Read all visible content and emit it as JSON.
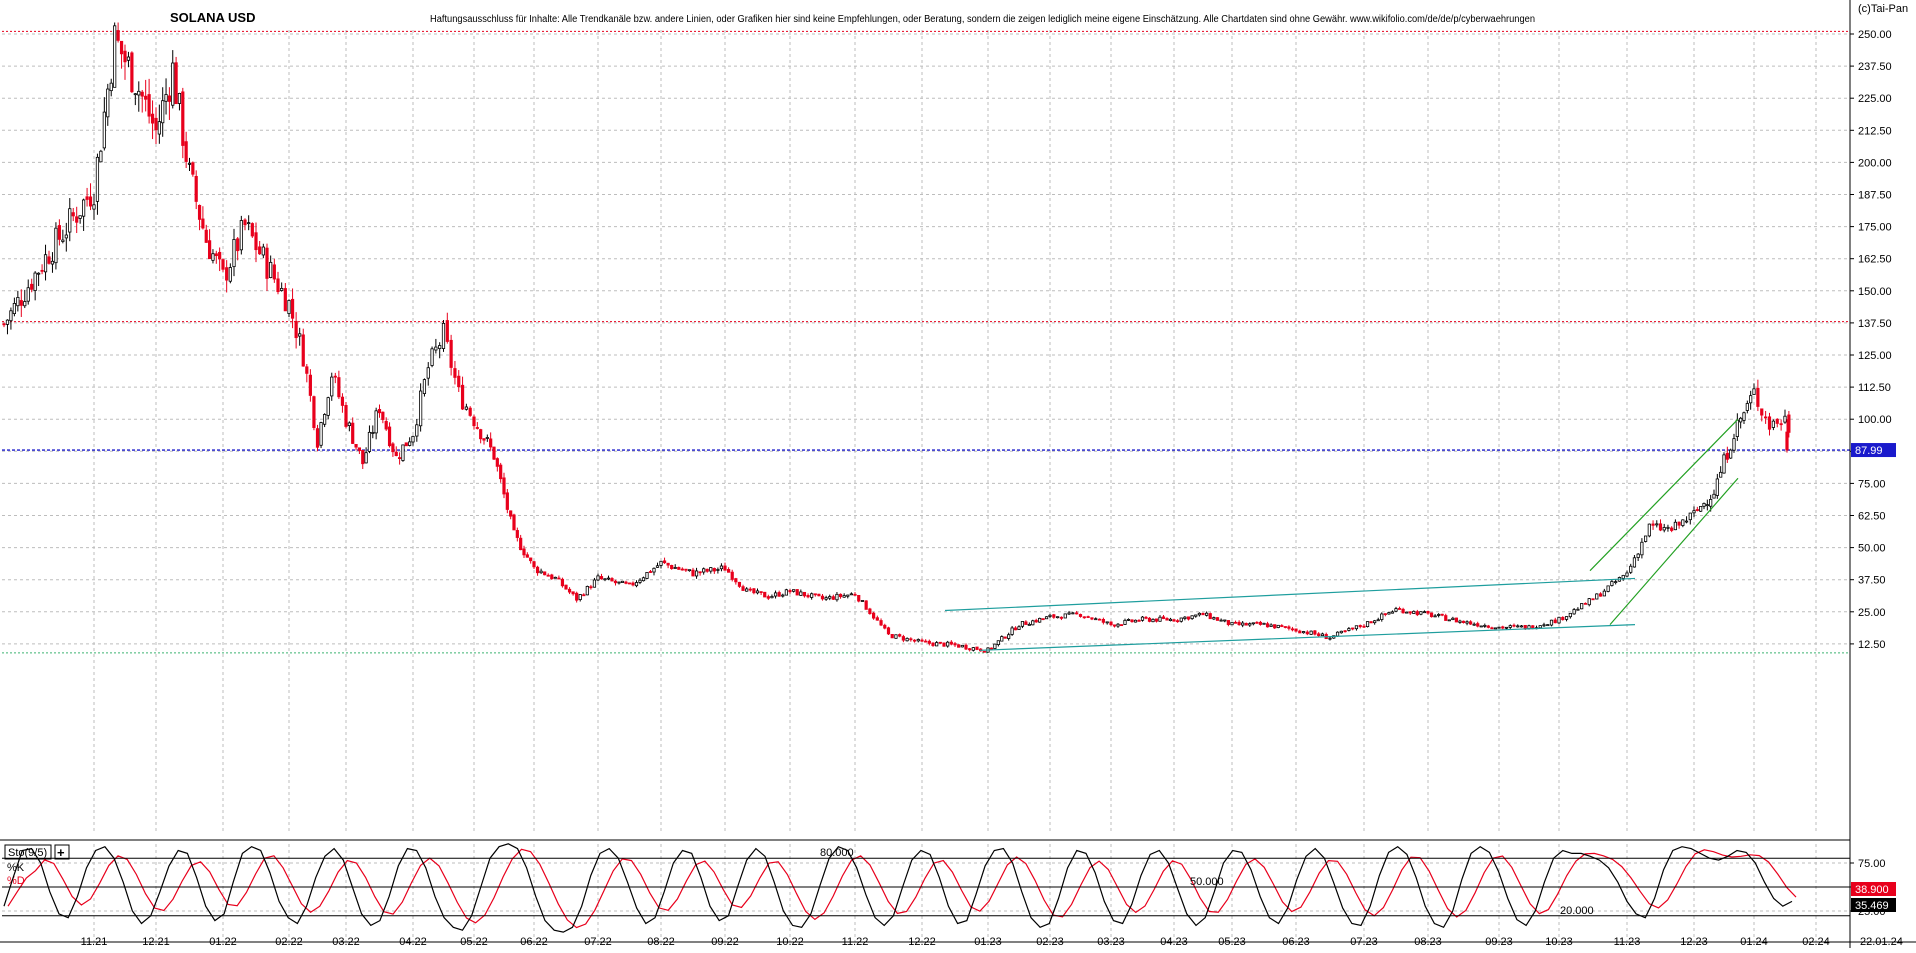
{
  "header": {
    "title": "SOLANA USD",
    "disclaimer": "Haftungsausschluss für Inhalte: Alle Trendkanäle bzw. andere Linien, oder Grafiken hier sind keine Empfehlungen, oder Beratung, sondern die zeigen lediglich meine eigene Einschätzung. Alle Chartdaten sind ohne Gewähr.  www.wikifolio.com/de/de/p/cyberwaehrungen",
    "copyright": "(c)Tai-Pan"
  },
  "colors": {
    "up_candle": "#000000",
    "down_candle": "#e8001c",
    "grid": "#bdbdbd",
    "last_price_line": "#1a1acc",
    "channel_teal": "#1f9e9e",
    "channel_green": "#22a022",
    "stoch_k": "#000000",
    "stoch_d": "#e8001c",
    "resistance_red": "#e8001c",
    "support_green": "#3cb371"
  },
  "chart_data": [
    {
      "type": "candlestick",
      "title": "SOLANA USD",
      "xlabel": "",
      "ylabel": "",
      "ylim": [
        2,
        257
      ],
      "y_ticks": [
        "250.00",
        "237.50",
        "225.00",
        "212.50",
        "200.00",
        "187.50",
        "175.00",
        "162.50",
        "150.00",
        "137.50",
        "125.00",
        "112.50",
        "100.00",
        "87.50",
        "75.00",
        "62.50",
        "50.00",
        "37.50",
        "25.00",
        "12.50"
      ],
      "y_tick_values": [
        250,
        237.5,
        225,
        212.5,
        200,
        187.5,
        175,
        162.5,
        150,
        137.5,
        125,
        112.5,
        100,
        87.5,
        75,
        62.5,
        50,
        37.5,
        25,
        12.5
      ],
      "x_ticks": [
        "11.21",
        "12.21",
        "01.22",
        "02.22",
        "03.22",
        "04.22",
        "05.22",
        "06.22",
        "07.22",
        "08.22",
        "09.22",
        "10.22",
        "11.22",
        "12.22",
        "01.23",
        "02.23",
        "03.23",
        "04.23",
        "05.23",
        "06.23",
        "07.23",
        "08.23",
        "09.23",
        "10.23",
        "11.23",
        "12.23",
        "01.24",
        "02.24"
      ],
      "last_date": "22.01.24",
      "last_price": 87.99,
      "last_price_label": "87.99",
      "horizontal_lines": [
        {
          "value": 251,
          "style": "dashed",
          "color": "red"
        },
        {
          "value": 138,
          "style": "dashed",
          "color": "red"
        },
        {
          "value": 87.99,
          "style": "dashed",
          "color": "blue"
        },
        {
          "value": 9,
          "style": "dashed",
          "color": "green"
        }
      ],
      "trendlines": [
        {
          "color": "teal",
          "from": [
            "12.22",
            25.5
          ],
          "to": [
            "11.23",
            38
          ]
        },
        {
          "color": "teal",
          "from": [
            "01.23",
            10
          ],
          "to": [
            "12.23",
            20
          ]
        },
        {
          "color": "green",
          "from": [
            "10.23",
            41
          ],
          "to": [
            "01.24",
            100
          ]
        },
        {
          "color": "green",
          "from": [
            "11.23",
            20
          ],
          "to": [
            "01.24",
            77
          ]
        }
      ],
      "close_path": [
        {
          "date": "10.21",
          "close": 137
        },
        {
          "date": "10.21",
          "close": 165
        },
        {
          "date": "11.21",
          "close": 190
        },
        {
          "date": "11.21",
          "close": 248
        },
        {
          "date": "11.21",
          "close": 232
        },
        {
          "date": "12.21",
          "close": 212
        },
        {
          "date": "12.21",
          "close": 236
        },
        {
          "date": "12.21",
          "close": 195
        },
        {
          "date": "12.21",
          "close": 170
        },
        {
          "date": "01.22",
          "close": 155
        },
        {
          "date": "01.22",
          "close": 175
        },
        {
          "date": "01.22",
          "close": 160
        },
        {
          "date": "02.22",
          "close": 145
        },
        {
          "date": "02.22",
          "close": 125
        },
        {
          "date": "02.22",
          "close": 92
        },
        {
          "date": "02.22",
          "close": 118
        },
        {
          "date": "03.22",
          "close": 100
        },
        {
          "date": "03.22",
          "close": 83
        },
        {
          "date": "03.22",
          "close": 105
        },
        {
          "date": "03.22",
          "close": 85
        },
        {
          "date": "04.22",
          "close": 95
        },
        {
          "date": "04.22",
          "close": 120
        },
        {
          "date": "04.22",
          "close": 133
        },
        {
          "date": "04.22",
          "close": 110
        },
        {
          "date": "05.22",
          "close": 100
        },
        {
          "date": "05.22",
          "close": 86
        },
        {
          "date": "05.22",
          "close": 55
        },
        {
          "date": "06.22",
          "close": 42
        },
        {
          "date": "06.22",
          "close": 38
        },
        {
          "date": "06.22",
          "close": 30
        },
        {
          "date": "07.22",
          "close": 38
        },
        {
          "date": "07.22",
          "close": 35
        },
        {
          "date": "08.22",
          "close": 44
        },
        {
          "date": "08.22",
          "close": 40
        },
        {
          "date": "09.22",
          "close": 42
        },
        {
          "date": "09.22",
          "close": 33
        },
        {
          "date": "09.22",
          "close": 31
        },
        {
          "date": "10.22",
          "close": 33
        },
        {
          "date": "10.22",
          "close": 30
        },
        {
          "date": "11.22",
          "close": 32
        },
        {
          "date": "11.22",
          "close": 16
        },
        {
          "date": "12.22",
          "close": 13
        },
        {
          "date": "12.22",
          "close": 12
        },
        {
          "date": "01.23",
          "close": 10
        },
        {
          "date": "01.23",
          "close": 20
        },
        {
          "date": "02.23",
          "close": 23
        },
        {
          "date": "02.23",
          "close": 24
        },
        {
          "date": "03.23",
          "close": 20
        },
        {
          "date": "03.23",
          "close": 22
        },
        {
          "date": "04.23",
          "close": 22
        },
        {
          "date": "04.23",
          "close": 24
        },
        {
          "date": "05.23",
          "close": 20
        },
        {
          "date": "05.23",
          "close": 20
        },
        {
          "date": "06.23",
          "close": 18
        },
        {
          "date": "06.23",
          "close": 15
        },
        {
          "date": "07.23",
          "close": 20
        },
        {
          "date": "07.23",
          "close": 26
        },
        {
          "date": "08.23",
          "close": 24
        },
        {
          "date": "08.23",
          "close": 21
        },
        {
          "date": "09.23",
          "close": 19
        },
        {
          "date": "09.23",
          "close": 19
        },
        {
          "date": "10.23",
          "close": 22
        },
        {
          "date": "10.23",
          "close": 30
        },
        {
          "date": "11.23",
          "close": 40
        },
        {
          "date": "11.23",
          "close": 58
        },
        {
          "date": "11.23",
          "close": 57
        },
        {
          "date": "12.23",
          "close": 63
        },
        {
          "date": "12.23",
          "close": 72
        },
        {
          "date": "12.23",
          "close": 95
        },
        {
          "date": "01.24",
          "close": 110
        },
        {
          "date": "01.24",
          "close": 98
        },
        {
          "date": "01.24",
          "close": 100
        },
        {
          "date": "01.24",
          "close": 88
        }
      ]
    },
    {
      "type": "line",
      "title": "Sto(9/5)",
      "ylim": [
        0,
        100
      ],
      "y_ticks": [
        "75.00",
        "50.00",
        "25.00"
      ],
      "y_tick_values": [
        75,
        50,
        25
      ],
      "level_lines": [
        {
          "value": 80,
          "label": "80.000"
        },
        {
          "value": 50,
          "label": "50.000"
        },
        {
          "value": 20,
          "label": "20.000"
        }
      ],
      "series": [
        {
          "name": "%K",
          "color": "#000000",
          "last": 35.469,
          "last_label": "35.469"
        },
        {
          "name": "%D",
          "color": "#e8001c",
          "last": 38.9,
          "last_label": "38.900"
        }
      ],
      "k_values": [
        30,
        60,
        88,
        90,
        75,
        45,
        22,
        18,
        40,
        70,
        88,
        92,
        80,
        55,
        25,
        12,
        20,
        45,
        72,
        88,
        85,
        60,
        30,
        15,
        22,
        55,
        85,
        92,
        88,
        65,
        35,
        18,
        12,
        30,
        60,
        82,
        90,
        78,
        50,
        22,
        10,
        15,
        40,
        72,
        90,
        88,
        70,
        40,
        18,
        8,
        5,
        20,
        50,
        80,
        92,
        95,
        90,
        70,
        40,
        15,
        5,
        3,
        8,
        30,
        62,
        85,
        90,
        80,
        55,
        28,
        12,
        18,
        45,
        75,
        88,
        85,
        60,
        30,
        15,
        20,
        50,
        78,
        90,
        82,
        55,
        25,
        10,
        8,
        22,
        52,
        80,
        92,
        88,
        70,
        42,
        18,
        10,
        20,
        50,
        78,
        88,
        84,
        60,
        30,
        12,
        15,
        42,
        72,
        88,
        90,
        75,
        45,
        18,
        8,
        12,
        38,
        70,
        88,
        85,
        65,
        35,
        15,
        12,
        32,
        62,
        84,
        88,
        75,
        48,
        22,
        10,
        18,
        45,
        75,
        88,
        86,
        68,
        40,
        18,
        12,
        28,
        58,
        82,
        90,
        80,
        55,
        28,
        12,
        10,
        30,
        62,
        86,
        92,
        84,
        60,
        30,
        12,
        8,
        25,
        58,
        85,
        92,
        86,
        66,
        38,
        16,
        10,
        25,
        55,
        80,
        88,
        85,
        85,
        82,
        78,
        70,
        55,
        35,
        22,
        18,
        38,
        68,
        88,
        92,
        90,
        85,
        80,
        78,
        82,
        88,
        86,
        75,
        55,
        38,
        30,
        35
      ]
    }
  ],
  "indicator_panel": {
    "label": "Sto(9/5)",
    "k_label": "%K",
    "d_label": "%D",
    "toggle_symbol": "+"
  }
}
